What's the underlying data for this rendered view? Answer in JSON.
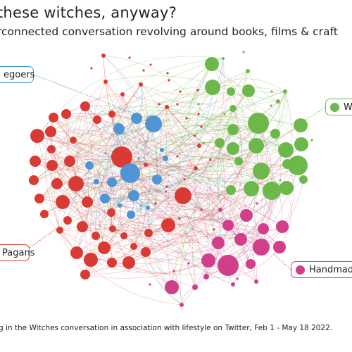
{
  "header": {
    "title": "these witches, anyway?",
    "subtitle": "rconnected conversation revolving around books, films & craft"
  },
  "labels": {
    "blue": "egoers",
    "green": "W",
    "red": "Pagans",
    "pink": "Handmade"
  },
  "colors": {
    "red": "#d93a34",
    "blue": "#4f94d4",
    "green": "#6cb84a",
    "pink": "#d13f8a"
  },
  "footnote": "g in the Witches conversation in association with lifestyle on Twitter, Feb 1  - May 18 2022."
}
